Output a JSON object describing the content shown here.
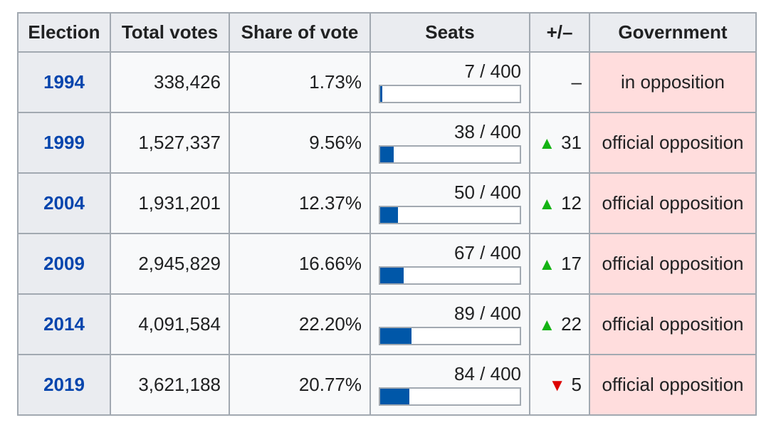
{
  "headers": {
    "election": "Election",
    "total_votes": "Total votes",
    "share": "Share of vote",
    "seats": "Seats",
    "delta": "+/–",
    "government": "Government"
  },
  "colors": {
    "link": "#0645ad",
    "bar_fill": "#0057a8",
    "gain": "#14b314",
    "loss": "#dd0000",
    "government_bg": "#ffdddd"
  },
  "rows": [
    {
      "year": "1994",
      "votes": "338,426",
      "share": "1.73%",
      "seats_label": "7 / 400",
      "seats_fraction": 0.0175,
      "change_icon": "none",
      "change": "–",
      "government": "in opposition"
    },
    {
      "year": "1999",
      "votes": "1,527,337",
      "share": "9.56%",
      "seats_label": "38 / 400",
      "seats_fraction": 0.095,
      "change_icon": "up",
      "change": "31",
      "government": "official opposition"
    },
    {
      "year": "2004",
      "votes": "1,931,201",
      "share": "12.37%",
      "seats_label": "50 / 400",
      "seats_fraction": 0.125,
      "change_icon": "up",
      "change": "12",
      "government": "official opposition"
    },
    {
      "year": "2009",
      "votes": "2,945,829",
      "share": "16.66%",
      "seats_label": "67 / 400",
      "seats_fraction": 0.1675,
      "change_icon": "up",
      "change": "17",
      "government": "official opposition"
    },
    {
      "year": "2014",
      "votes": "4,091,584",
      "share": "22.20%",
      "seats_label": "89 / 400",
      "seats_fraction": 0.2225,
      "change_icon": "up",
      "change": "22",
      "government": "official opposition"
    },
    {
      "year": "2019",
      "votes": "3,621,188",
      "share": "20.77%",
      "seats_label": "84 / 400",
      "seats_fraction": 0.21,
      "change_icon": "down",
      "change": "5",
      "government": "official opposition"
    }
  ]
}
